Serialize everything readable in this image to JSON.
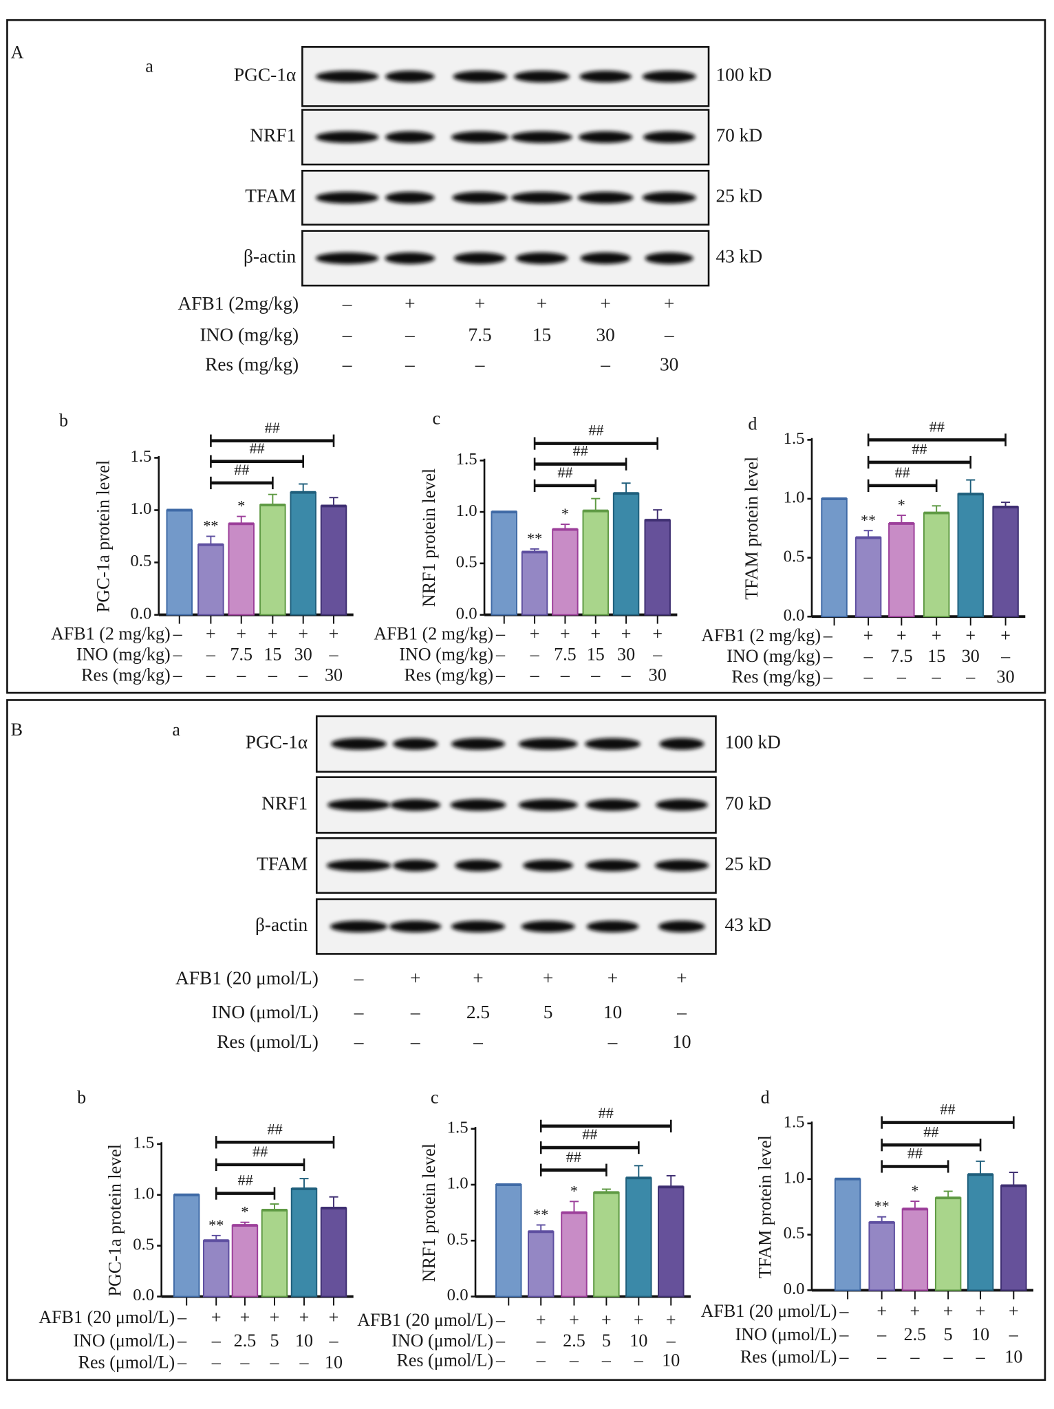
{
  "colors": {
    "bars": [
      "#7399c9",
      "#9487c4",
      "#c88cc6",
      "#a9d58b",
      "#3b89a8",
      "#66519a"
    ],
    "bar_edges": [
      "#3f6aa6",
      "#5e4fa0",
      "#9c3f9a",
      "#5f9a44",
      "#1f5f7c",
      "#3f2f72"
    ]
  },
  "panels": [
    {
      "letter": "A",
      "blot": {
        "sublabel": "a",
        "bands": [
          {
            "name": "PGC-1α",
            "size": "100 kD"
          },
          {
            "name": "NRF1",
            "size": "70 kD"
          },
          {
            "name": "TFAM",
            "size": "25 kD"
          },
          {
            "name": "β-actin",
            "size": "43 kD"
          }
        ],
        "treatments": [
          {
            "label": "AFB1 (2mg/kg)",
            "values": [
              "–",
              "+",
              "+",
              "+",
              "+",
              "+"
            ]
          },
          {
            "label": "INO (mg/kg)",
            "values": [
              "–",
              "–",
              "7.5",
              "15",
              "30",
              "–"
            ]
          },
          {
            "label": "Res (mg/kg)",
            "values": [
              "–",
              "–",
              "–",
              "",
              "–",
              "30"
            ]
          }
        ]
      }
    },
    {
      "letter": "B",
      "blot": {
        "sublabel": "a",
        "bands": [
          {
            "name": "PGC-1α",
            "size": "100 kD"
          },
          {
            "name": "NRF1",
            "size": "70 kD"
          },
          {
            "name": "TFAM",
            "size": "25 kD"
          },
          {
            "name": "β-actin",
            "size": "43 kD"
          }
        ],
        "treatments": [
          {
            "label": "AFB1 (20 μmol/L)",
            "values": [
              "–",
              "+",
              "+",
              "+",
              "+",
              "+"
            ]
          },
          {
            "label": "INO (μmol/L)",
            "values": [
              "–",
              "–",
              "2.5",
              "5",
              "10",
              "–"
            ]
          },
          {
            "label": "Res (μmol/L)",
            "values": [
              "–",
              "–",
              "–",
              "",
              "–",
              "10"
            ]
          }
        ]
      }
    }
  ],
  "chart_data": [
    {
      "panel": "A",
      "sublabel": "b",
      "type": "bar",
      "ylabel": "PGC-1a protein level",
      "ylim": [
        0,
        1.5
      ],
      "yticks": [
        "0.0",
        "0.5",
        "1.0",
        "1.5"
      ],
      "values": [
        1.0,
        0.67,
        0.87,
        1.05,
        1.17,
        1.04
      ],
      "errors": [
        0,
        0.08,
        0.07,
        0.1,
        0.08,
        0.08
      ],
      "stars": [
        "",
        "**",
        "*",
        "",
        "",
        ""
      ],
      "comparisons": [
        {
          "from": 2,
          "to": 4,
          "label": "##"
        },
        {
          "from": 2,
          "to": 5,
          "label": "##"
        },
        {
          "from": 2,
          "to": 6,
          "label": "##"
        }
      ],
      "rows": [
        {
          "label": "AFB1 (2 mg/kg)",
          "values": [
            "–",
            "+",
            "+",
            "+",
            "+",
            "+"
          ]
        },
        {
          "label": "INO (mg/kg)",
          "values": [
            "–",
            "–",
            "7.5",
            "15",
            "30",
            "–"
          ]
        },
        {
          "label": "Res (mg/kg)",
          "values": [
            "–",
            "–",
            "–",
            "–",
            "–",
            "30"
          ]
        }
      ]
    },
    {
      "panel": "A",
      "sublabel": "c",
      "type": "bar",
      "ylabel": "NRF1 protein level",
      "ylim": [
        0,
        1.5
      ],
      "yticks": [
        "0.0",
        "0.5",
        "1.0",
        "1.5"
      ],
      "values": [
        1.0,
        0.61,
        0.83,
        1.01,
        1.18,
        0.92
      ],
      "errors": [
        0,
        0.03,
        0.05,
        0.12,
        0.1,
        0.1
      ],
      "stars": [
        "",
        "**",
        "*",
        "",
        "",
        ""
      ],
      "comparisons": [
        {
          "from": 2,
          "to": 4,
          "label": "##"
        },
        {
          "from": 2,
          "to": 5,
          "label": "##"
        },
        {
          "from": 2,
          "to": 6,
          "label": "##"
        }
      ],
      "rows": [
        {
          "label": "AFB1 (2 mg/kg)",
          "values": [
            "–",
            "+",
            "+",
            "+",
            "+",
            "+"
          ]
        },
        {
          "label": "INO (mg/kg)",
          "values": [
            "–",
            "–",
            "7.5",
            "15",
            "30",
            "–"
          ]
        },
        {
          "label": "Res (mg/kg)",
          "values": [
            "–",
            "–",
            "–",
            "–",
            "–",
            "30"
          ]
        }
      ]
    },
    {
      "panel": "A",
      "sublabel": "d",
      "type": "bar",
      "ylabel": "TFAM protein level",
      "ylim": [
        0,
        1.5
      ],
      "yticks": [
        "0.0",
        "0.5",
        "1.0",
        "1.5"
      ],
      "values": [
        1.0,
        0.67,
        0.79,
        0.88,
        1.04,
        0.93
      ],
      "errors": [
        0,
        0.06,
        0.07,
        0.06,
        0.12,
        0.04
      ],
      "stars": [
        "",
        "**",
        "*",
        "",
        "",
        ""
      ],
      "comparisons": [
        {
          "from": 2,
          "to": 4,
          "label": "##"
        },
        {
          "from": 2,
          "to": 5,
          "label": "##"
        },
        {
          "from": 2,
          "to": 6,
          "label": "##"
        }
      ],
      "rows": [
        {
          "label": "AFB1 (2 mg/kg)",
          "values": [
            "–",
            "+",
            "+",
            "+",
            "+",
            "+"
          ]
        },
        {
          "label": "INO (mg/kg)",
          "values": [
            "–",
            "–",
            "7.5",
            "15",
            "30",
            "–"
          ]
        },
        {
          "label": "Res (mg/kg)",
          "values": [
            "–",
            "–",
            "–",
            "–",
            "–",
            "30"
          ]
        }
      ]
    },
    {
      "panel": "B",
      "sublabel": "b",
      "type": "bar",
      "ylabel": "PGC-1a protein level",
      "ylim": [
        0,
        1.5
      ],
      "yticks": [
        "0.0",
        "0.5",
        "1.0",
        "1.5"
      ],
      "values": [
        1.0,
        0.55,
        0.7,
        0.85,
        1.06,
        0.87
      ],
      "errors": [
        0,
        0.05,
        0.03,
        0.06,
        0.1,
        0.11
      ],
      "stars": [
        "",
        "**",
        "*",
        "",
        "",
        ""
      ],
      "comparisons": [
        {
          "from": 2,
          "to": 4,
          "label": "##"
        },
        {
          "from": 2,
          "to": 5,
          "label": "##"
        },
        {
          "from": 2,
          "to": 6,
          "label": "##"
        }
      ],
      "rows": [
        {
          "label": "AFB1 (20 μmol/L)",
          "values": [
            "–",
            "+",
            "+",
            "+",
            "+",
            "+"
          ]
        },
        {
          "label": "INO (μmol/L)",
          "values": [
            "–",
            "–",
            "2.5",
            "5",
            "10",
            "–"
          ]
        },
        {
          "label": "Res (μmol/L)",
          "values": [
            "–",
            "–",
            "–",
            "–",
            "–",
            "10"
          ]
        }
      ]
    },
    {
      "panel": "B",
      "sublabel": "c",
      "type": "bar",
      "ylabel": "NRF1 protein level",
      "ylim": [
        0,
        1.5
      ],
      "yticks": [
        "0.0",
        "0.5",
        "1.0",
        "1.5"
      ],
      "values": [
        1.0,
        0.58,
        0.75,
        0.93,
        1.06,
        0.98
      ],
      "errors": [
        0,
        0.06,
        0.1,
        0.03,
        0.11,
        0.1
      ],
      "stars": [
        "",
        "**",
        "*",
        "",
        "",
        ""
      ],
      "comparisons": [
        {
          "from": 2,
          "to": 4,
          "label": "##"
        },
        {
          "from": 2,
          "to": 5,
          "label": "##"
        },
        {
          "from": 2,
          "to": 6,
          "label": "##"
        }
      ],
      "rows": [
        {
          "label": "AFB1 (20 μmol/L)",
          "values": [
            "–",
            "+",
            "+",
            "+",
            "+",
            "+"
          ]
        },
        {
          "label": "INO (μmol/L)",
          "values": [
            "–",
            "–",
            "2.5",
            "5",
            "10",
            "–"
          ]
        },
        {
          "label": "Res (μmol/L)",
          "values": [
            "–",
            "–",
            "–",
            "–",
            "–",
            "10"
          ]
        }
      ]
    },
    {
      "panel": "B",
      "sublabel": "d",
      "type": "bar",
      "ylabel": "TFAM protein level",
      "ylim": [
        0,
        1.5
      ],
      "yticks": [
        "0.0",
        "0.5",
        "1.0",
        "1.5"
      ],
      "values": [
        1.0,
        0.61,
        0.73,
        0.83,
        1.04,
        0.94
      ],
      "errors": [
        0,
        0.05,
        0.07,
        0.06,
        0.12,
        0.12
      ],
      "stars": [
        "",
        "**",
        "*",
        "",
        "",
        ""
      ],
      "comparisons": [
        {
          "from": 2,
          "to": 4,
          "label": "##"
        },
        {
          "from": 2,
          "to": 5,
          "label": "##"
        },
        {
          "from": 2,
          "to": 6,
          "label": "##"
        }
      ],
      "rows": [
        {
          "label": "AFB1 (20 μmol/L)",
          "values": [
            "–",
            "+",
            "+",
            "+",
            "+",
            "+"
          ]
        },
        {
          "label": "INO (μmol/L)",
          "values": [
            "–",
            "–",
            "2.5",
            "5",
            "10",
            "–"
          ]
        },
        {
          "label": "Res (μmol/L)",
          "values": [
            "–",
            "–",
            "–",
            "–",
            "–",
            "10"
          ]
        }
      ]
    }
  ]
}
